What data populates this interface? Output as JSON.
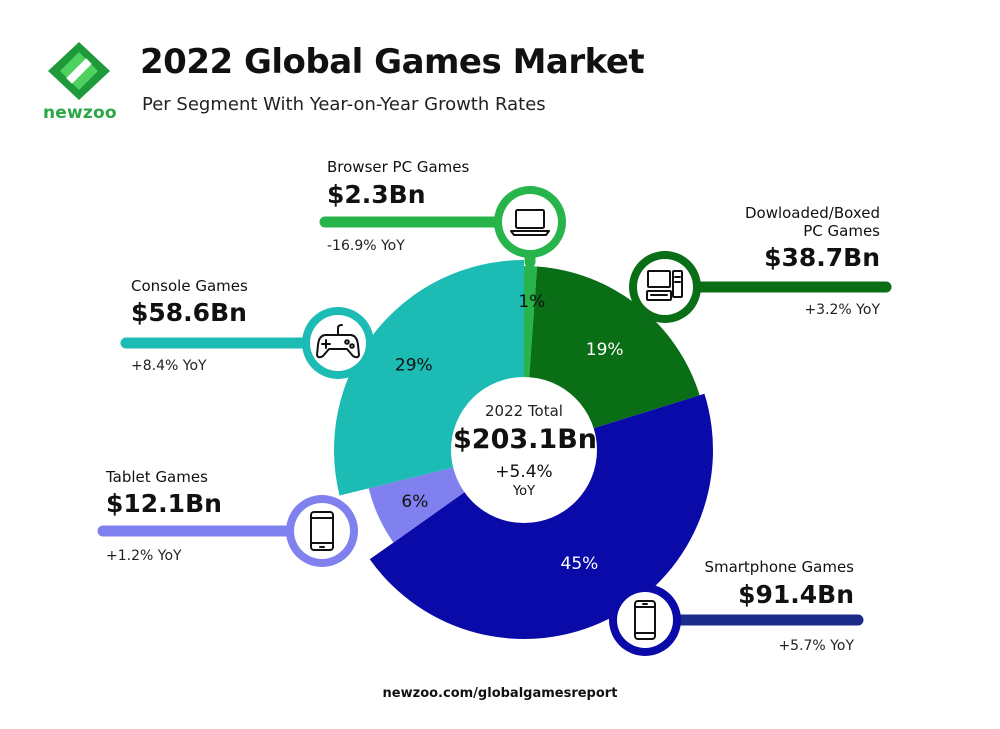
{
  "brand": {
    "name": "newzoo",
    "logo_colors": [
      "#1f9a3a",
      "#4ed15f"
    ]
  },
  "header": {
    "title": "2022 Global Games Market",
    "subtitle": "Per Segment With Year-on-Year Growth Rates"
  },
  "center": {
    "label": "2022 Total",
    "value": "$203.1Bn",
    "growth": "+5.4%",
    "growth_unit": "YoY"
  },
  "segments": [
    {
      "name": "Browser PC Games",
      "value": "$2.3Bn",
      "yoy": "-16.9% YoY",
      "percent_label": "1%",
      "color": "#27b44a",
      "icon": "laptop-icon"
    },
    {
      "name_line1": "Dowloaded/Boxed",
      "name_line2": "PC Games",
      "value": "$38.7Bn",
      "yoy": "+3.2% YoY",
      "percent_label": "19%",
      "color": "#0a6e16",
      "icon": "desktop-computer-icon"
    },
    {
      "name": "Smartphone Games",
      "value": "$91.4Bn",
      "yoy": "+5.7% YoY",
      "percent_label": "45%",
      "color": "#0a0aa8",
      "icon": "smartphone-icon"
    },
    {
      "name": "Tablet Games",
      "value": "$12.1Bn",
      "yoy": "+1.2% YoY",
      "percent_label": "6%",
      "color": "#8080ee",
      "icon": "tablet-icon"
    },
    {
      "name": "Console Games",
      "value": "$58.6Bn",
      "yoy": "+8.4% YoY",
      "percent_label": "29%",
      "color": "#1cbcb4",
      "icon": "gamepad-icon"
    }
  ],
  "chart_data": {
    "type": "pie",
    "title": "2022 Global Games Market",
    "subtitle": "Per Segment With Year-on-Year Growth Rates",
    "unit": "Bn USD",
    "total": 203.1,
    "total_growth_pct": 5.4,
    "series": [
      {
        "name": "Browser PC Games",
        "value": 2.3,
        "share_pct": 1,
        "yoy_pct": -16.9,
        "color": "#27b44a"
      },
      {
        "name": "Dowloaded/Boxed PC Games",
        "value": 38.7,
        "share_pct": 19,
        "yoy_pct": 3.2,
        "color": "#0a6e16"
      },
      {
        "name": "Smartphone Games",
        "value": 91.4,
        "share_pct": 45,
        "yoy_pct": 5.7,
        "color": "#0a0aa8"
      },
      {
        "name": "Tablet Games",
        "value": 12.1,
        "share_pct": 6,
        "yoy_pct": 1.2,
        "color": "#8080ee"
      },
      {
        "name": "Console Games",
        "value": 58.6,
        "share_pct": 29,
        "yoy_pct": 8.4,
        "color": "#1cbcb4"
      }
    ]
  },
  "footer": {
    "url": "newzoo.com/globalgamesreport"
  }
}
